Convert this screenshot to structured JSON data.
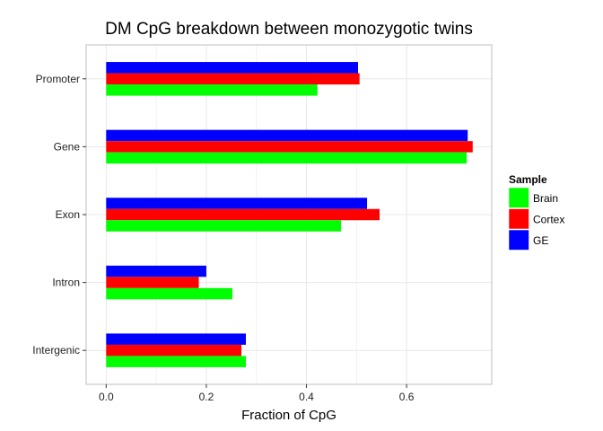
{
  "chart_data": {
    "type": "bar",
    "orientation": "horizontal",
    "title": "DM CpG breakdown between monozygotic twins",
    "xlabel": "Fraction of CpG",
    "ylabel": "",
    "xlim": [
      -0.04,
      0.77
    ],
    "xticks": [
      0.0,
      0.2,
      0.4,
      0.6
    ],
    "xtick_labels": [
      "0.0",
      "0.2",
      "0.4",
      "0.6"
    ],
    "categories": [
      "Promoter",
      "Gene",
      "Exon",
      "Intron",
      "Intergenic"
    ],
    "series": [
      {
        "name": "GE",
        "color": "#0000ff",
        "values": [
          0.503,
          0.722,
          0.521,
          0.2,
          0.279
        ]
      },
      {
        "name": "Cortex",
        "color": "#ff0000",
        "values": [
          0.506,
          0.732,
          0.546,
          0.185,
          0.27
        ]
      },
      {
        "name": "Brain",
        "color": "#00ff00",
        "values": [
          0.422,
          0.72,
          0.469,
          0.252,
          0.279
        ]
      }
    ],
    "legend": {
      "title": "Sample",
      "position": "right",
      "entries": [
        "Brain",
        "Cortex",
        "GE"
      ]
    },
    "grid": true,
    "theme_colors": {
      "panel_border": "#bfbfbf",
      "grid": "#ebebeb"
    }
  }
}
